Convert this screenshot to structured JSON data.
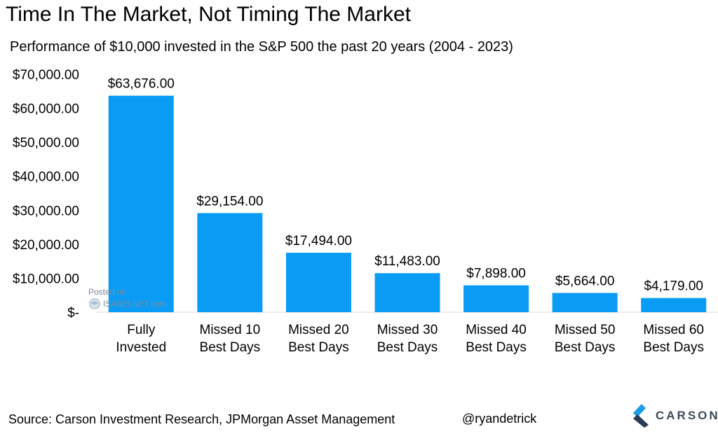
{
  "header": {
    "title": "Time In The Market, Not Timing The Market",
    "subtitle": "Performance of $10,000 invested in the S&P 500 the past 20 years (2004 - 2023)"
  },
  "chart_data": {
    "type": "bar",
    "categories": [
      [
        "Fully",
        "Invested"
      ],
      [
        "Missed 10",
        "Best Days"
      ],
      [
        "Missed 20",
        "Best Days"
      ],
      [
        "Missed 30",
        "Best Days"
      ],
      [
        "Missed 40",
        "Best Days"
      ],
      [
        "Missed 50",
        "Best Days"
      ],
      [
        "Missed 60",
        "Best Days"
      ]
    ],
    "values": [
      63676,
      29154,
      17494,
      11483,
      7898,
      5664,
      4179
    ],
    "data_labels": [
      "$63,676.00",
      "$29,154.00",
      "$17,494.00",
      "$11,483.00",
      "$7,898.00",
      "$5,664.00",
      "$4,179.00"
    ],
    "y_ticks": [
      0,
      10000,
      20000,
      30000,
      40000,
      50000,
      60000,
      70000
    ],
    "y_tick_labels": [
      "$-",
      "$10,000.00",
      "$20,000.00",
      "$30,000.00",
      "$40,000.00",
      "$50,000.00",
      "$60,000.00",
      "$70,000.00"
    ],
    "ylim": [
      0,
      70000
    ],
    "bar_color": "#0a9cf5",
    "grid": false,
    "legend": "none"
  },
  "footer": {
    "source": "Source: Carson Investment Research, JPMorgan Asset Management",
    "handle": "@ryandetrick"
  },
  "logo": {
    "text": "CARSON",
    "colors": [
      "#1e9be9",
      "#2b3a55"
    ]
  },
  "watermark": {
    "line1": "Posted on",
    "line2": "ISABELNET.com"
  }
}
